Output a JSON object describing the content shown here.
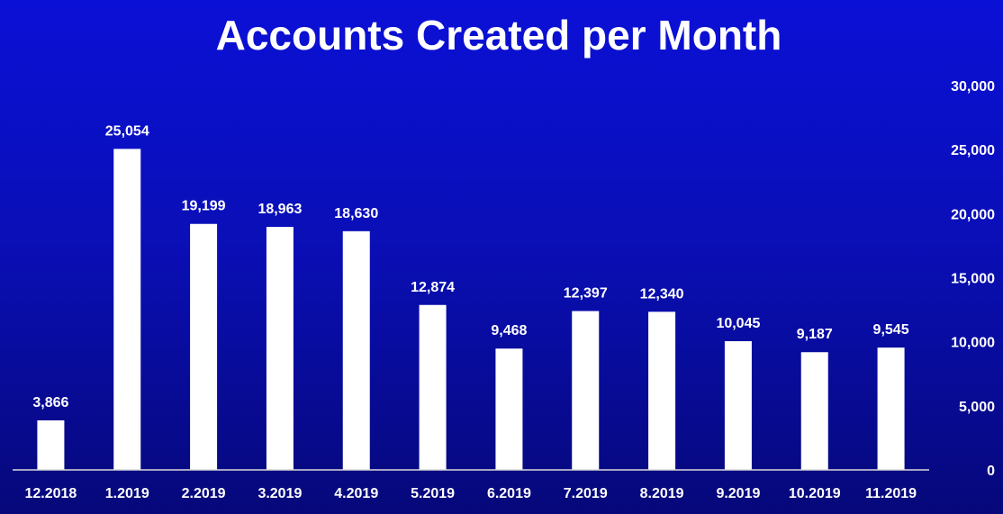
{
  "chart_data": {
    "type": "bar",
    "title": "Accounts Created per Month",
    "xlabel": "",
    "ylabel": "",
    "categories": [
      "12.2018",
      "1.2019",
      "2.2019",
      "3.2019",
      "4.2019",
      "5.2019",
      "6.2019",
      "7.2019",
      "8.2019",
      "9.2019",
      "10.2019",
      "11.2019"
    ],
    "values": [
      3866,
      25054,
      19199,
      18963,
      18630,
      12874,
      9468,
      12397,
      12340,
      10045,
      9187,
      9545
    ],
    "value_labels": [
      "3,866",
      "25,054",
      "19,199",
      "18,963",
      "18,630",
      "12,874",
      "9,468",
      "12,397",
      "12,340",
      "10,045",
      "9,187",
      "9,545"
    ],
    "ylim": [
      0,
      30000
    ],
    "y_ticks": [
      0,
      5000,
      10000,
      15000,
      20000,
      25000,
      30000
    ],
    "y_tick_labels": [
      "0",
      "5,000",
      "10,000",
      "15,000",
      "20,000",
      "25,000",
      "30,000"
    ],
    "y_axis_side": "right",
    "grid": false,
    "legend": "none",
    "colors": {
      "background_top": "#0b10d6",
      "background_bottom": "#06087a",
      "bar": "#ffffff",
      "text": "#ffffff"
    }
  }
}
